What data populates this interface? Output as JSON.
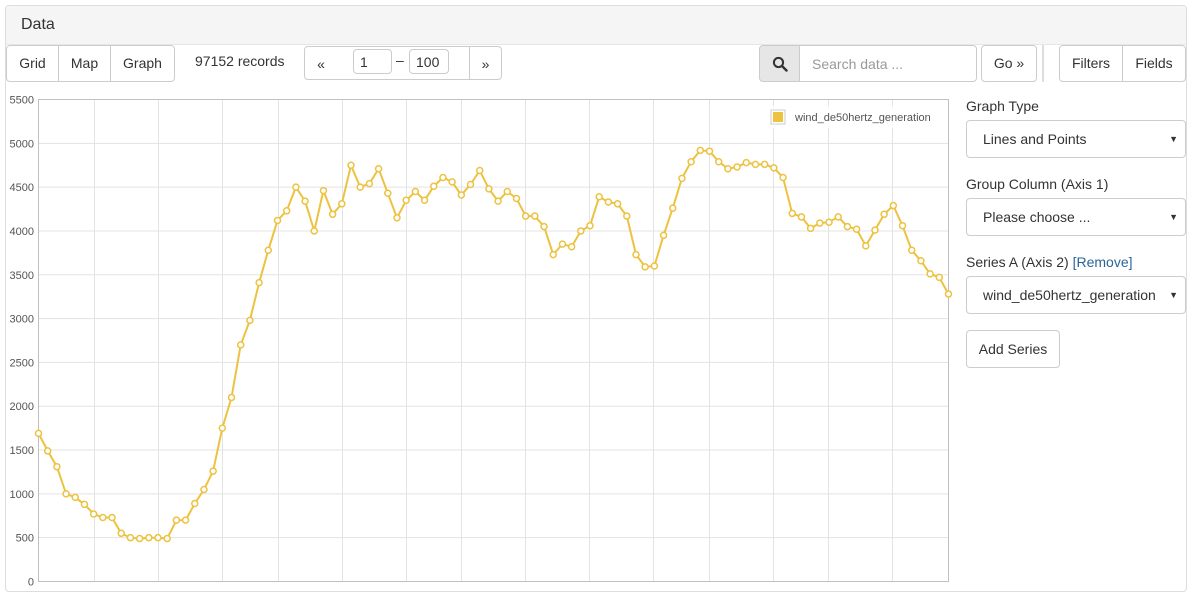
{
  "panel": {
    "title": "Data"
  },
  "toolbar": {
    "views": [
      "Grid",
      "Map",
      "Graph"
    ],
    "record_count": "97152 records",
    "pager": {
      "prev": "«",
      "next": "»",
      "from": "1",
      "dash": "–",
      "to": "100"
    },
    "search_placeholder": "Search data ...",
    "go": "Go »",
    "filters": "Filters",
    "fields": "Fields"
  },
  "sidebar": {
    "graph_type_label": "Graph Type",
    "graph_type_value": "Lines and Points",
    "group_column_label": "Group Column (Axis 1)",
    "group_column_value": "Please choose ...",
    "series_a_label": "Series A (Axis 2)",
    "remove": "[Remove]",
    "series_a_value": "wind_de50hertz_generation",
    "add_series": "Add Series"
  },
  "chart_data": {
    "type": "line",
    "ylim": [
      0,
      5500
    ],
    "yticks": [
      "0",
      "500",
      "1000",
      "1500",
      "2000",
      "2500",
      "3000",
      "3500",
      "4000",
      "4500",
      "5000",
      "5500"
    ],
    "color": "#edc240",
    "series": [
      {
        "name": "wind_de50hertz_generation",
        "values": [
          1690,
          1490,
          1310,
          1000,
          960,
          880,
          770,
          730,
          730,
          550,
          500,
          490,
          500,
          500,
          490,
          700,
          700,
          890,
          1050,
          1260,
          1750,
          2100,
          2700,
          2980,
          3410,
          3780,
          4120,
          4230,
          4500,
          4340,
          4000,
          4460,
          4190,
          4310,
          4750,
          4500,
          4540,
          4710,
          4430,
          4150,
          4350,
          4450,
          4350,
          4510,
          4610,
          4560,
          4410,
          4530,
          4690,
          4480,
          4340,
          4450,
          4370,
          4170,
          4170,
          4050,
          3730,
          3850,
          3820,
          4000,
          4060,
          4390,
          4330,
          4310,
          4170,
          3730,
          3590,
          3600,
          3950,
          4260,
          4600,
          4790,
          4920,
          4910,
          4790,
          4710,
          4730,
          4780,
          4760,
          4760,
          4720,
          4610,
          4200,
          4160,
          4030,
          4090,
          4100,
          4160,
          4050,
          4020,
          3830,
          4010,
          4190,
          4290,
          4060,
          3780,
          3660,
          3510,
          3470,
          3280
        ]
      }
    ]
  }
}
